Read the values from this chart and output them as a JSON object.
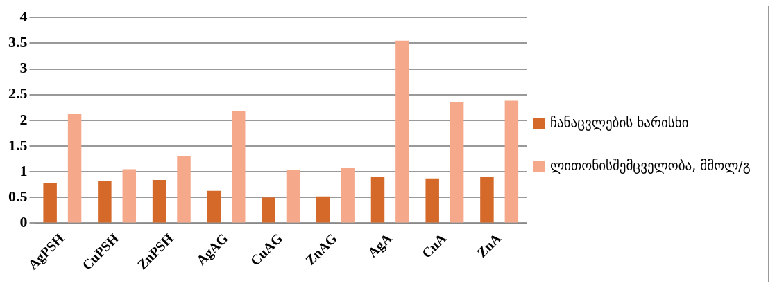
{
  "chart_data": {
    "type": "bar",
    "categories": [
      "AgPSH",
      "CuPSH",
      "ZnPSH",
      "AgAG",
      "CuAG",
      "ZnAG",
      "AgA",
      "CuA",
      "ZnA"
    ],
    "series": [
      {
        "name": "ჩანაცვლების ხარისხი",
        "color": "#d4692a",
        "values": [
          0.78,
          0.82,
          0.84,
          0.63,
          0.5,
          0.52,
          0.9,
          0.87,
          0.9
        ]
      },
      {
        "name": "ლითონისშემცველობა, მმოლ/გ",
        "color": "#f5a98a",
        "values": [
          2.12,
          1.05,
          1.3,
          2.18,
          1.03,
          1.07,
          3.55,
          2.35,
          2.38
        ]
      }
    ],
    "ylim": [
      0,
      4
    ],
    "yticks": [
      0,
      0.5,
      1,
      1.5,
      2,
      2.5,
      3,
      3.5,
      4
    ],
    "grid": "y",
    "legend": "right"
  }
}
